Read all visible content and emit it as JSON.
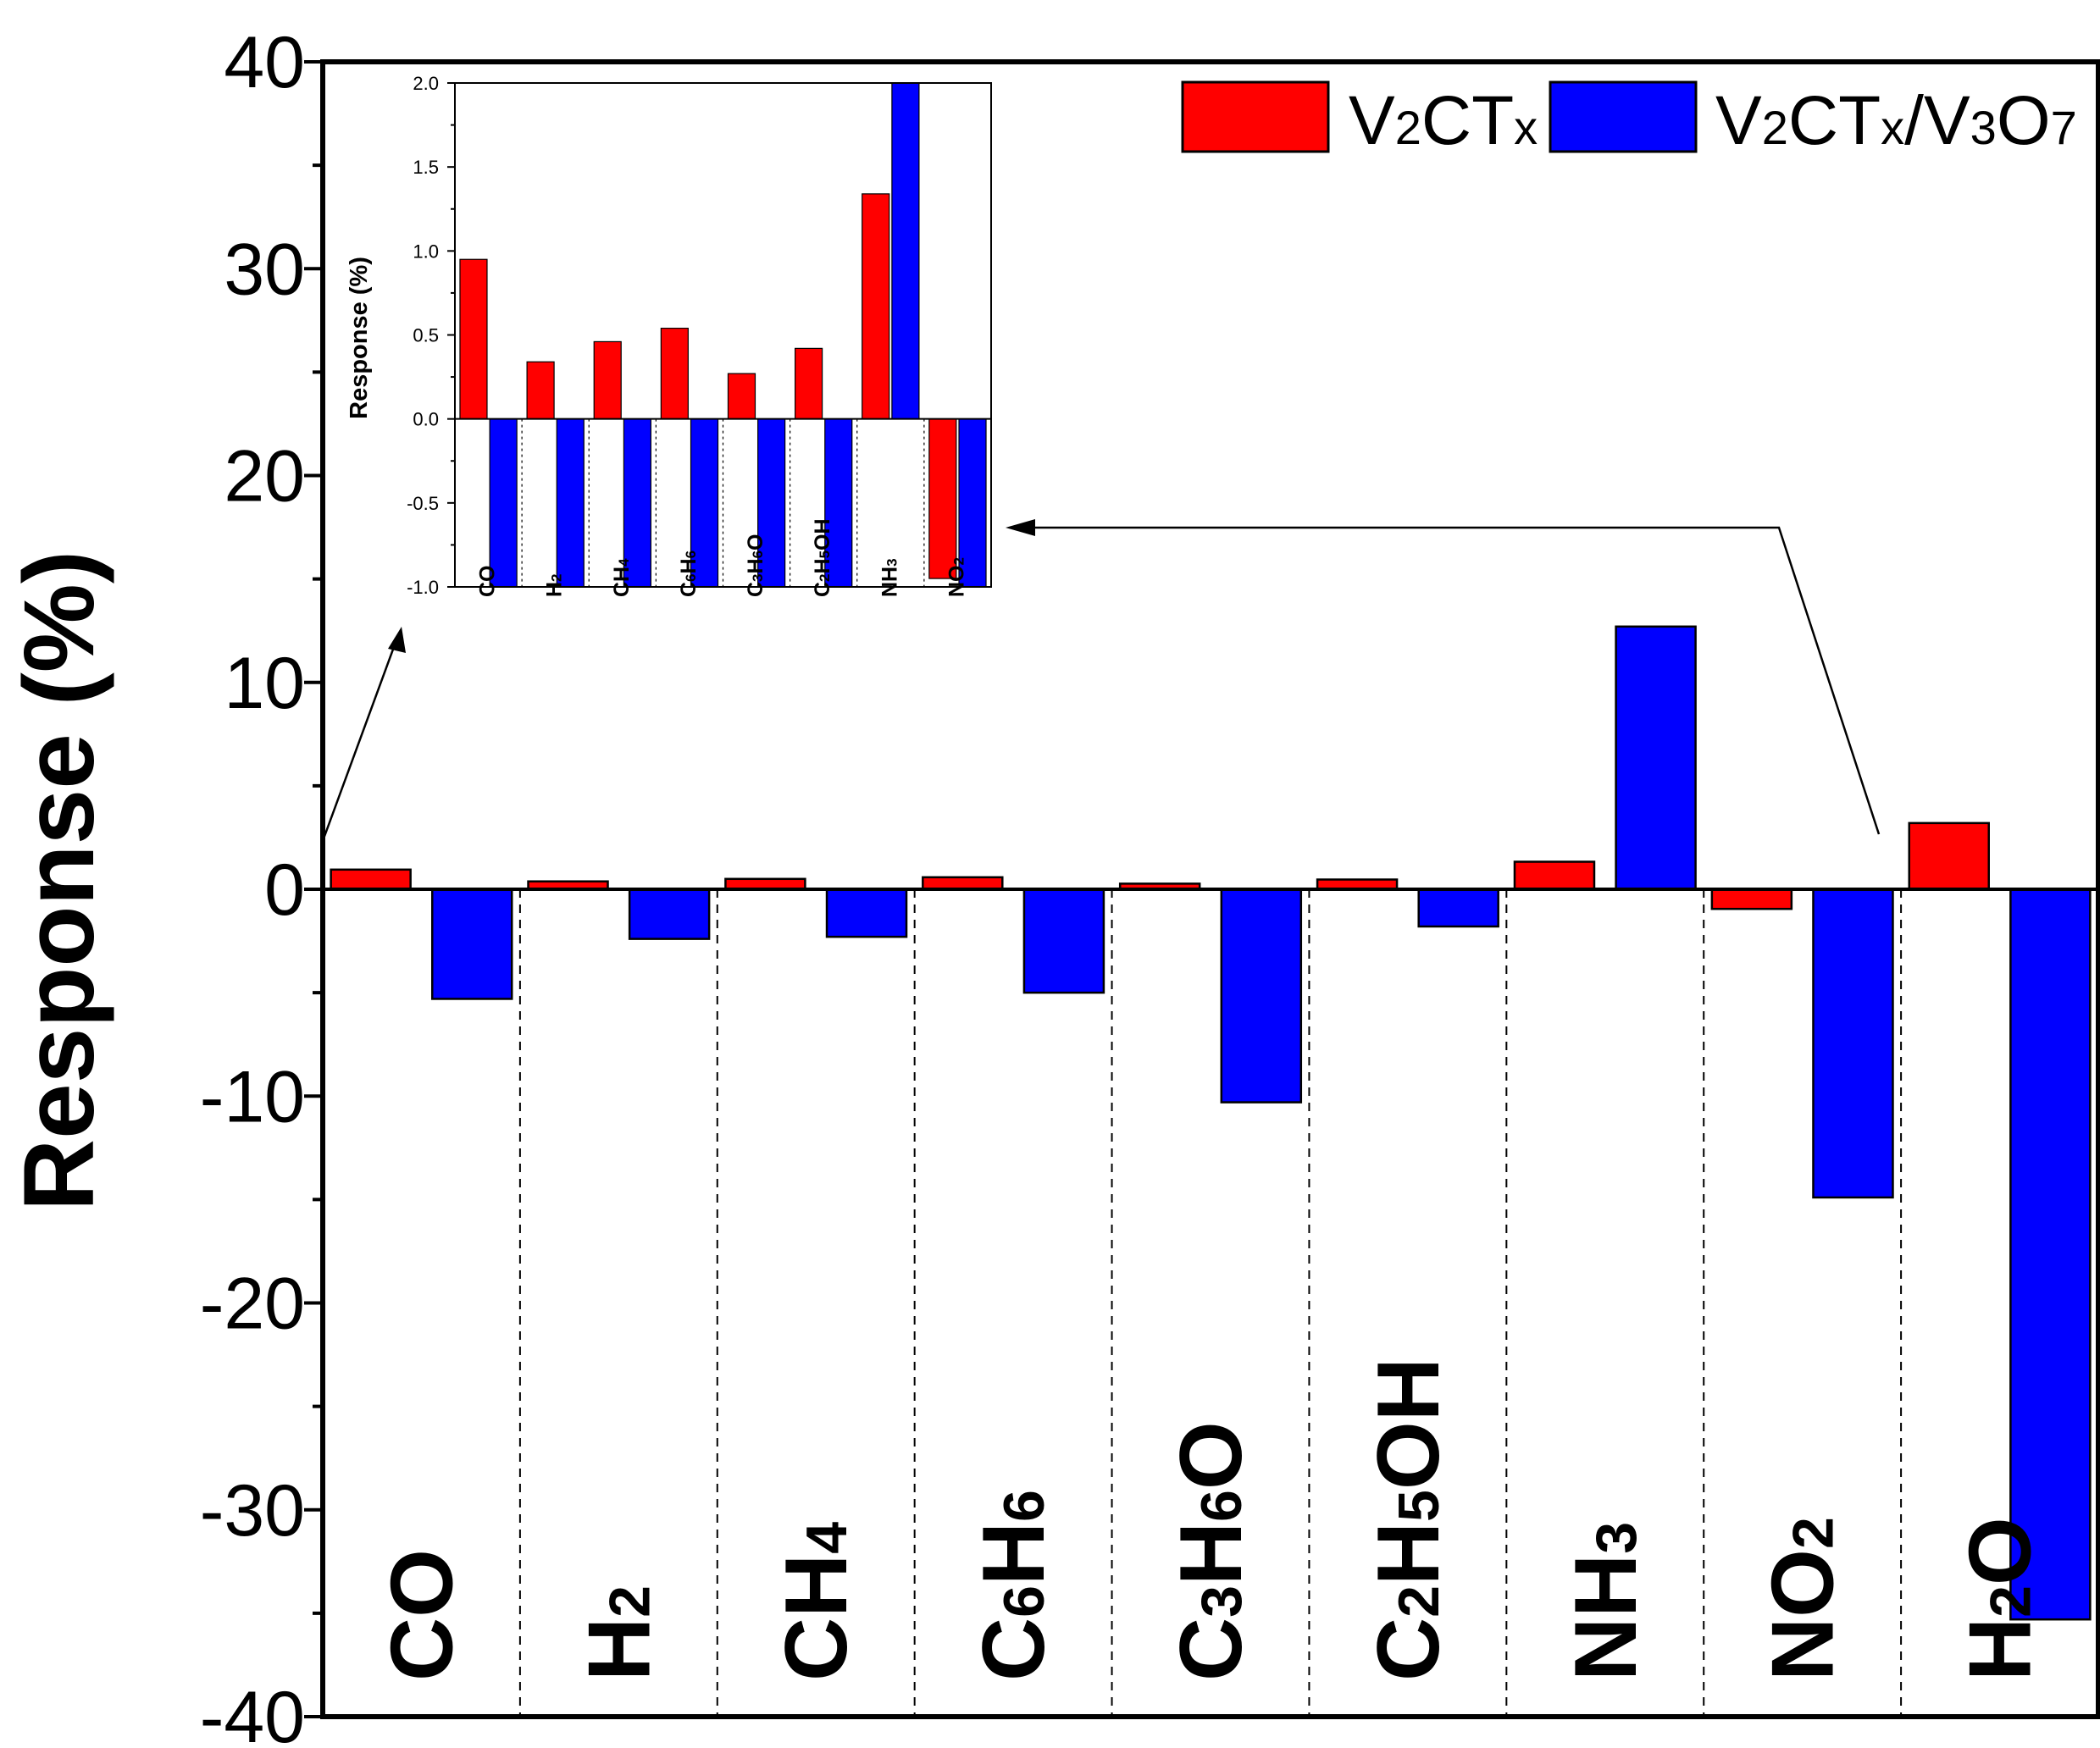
{
  "chart_data": [
    {
      "id": "main",
      "type": "bar",
      "title": "",
      "xlabel": "",
      "ylabel": "Response (%)",
      "ylim": [
        -40,
        40
      ],
      "yticks": [
        -40,
        -30,
        -20,
        -10,
        0,
        10,
        20,
        30,
        40
      ],
      "ytick_labels": [
        "-40",
        "-30",
        "-20",
        "-10",
        "0",
        "10",
        "20",
        "30",
        "40"
      ],
      "minor_tick_step": 5,
      "grid": false,
      "category_separators": "dashed",
      "categories": [
        "CO",
        "H2",
        "CH4",
        "C6H6",
        "C3H6O",
        "C2H5OH",
        "NH3",
        "NO2",
        "H2O"
      ],
      "category_labels": [
        [
          {
            "t": "CO"
          }
        ],
        [
          {
            "t": "H"
          },
          {
            "t": "2",
            "sub": true
          }
        ],
        [
          {
            "t": "CH"
          },
          {
            "t": "4",
            "sub": true
          }
        ],
        [
          {
            "t": "C"
          },
          {
            "t": "6",
            "sub": true
          },
          {
            "t": "H"
          },
          {
            "t": "6",
            "sub": true
          }
        ],
        [
          {
            "t": "C"
          },
          {
            "t": "3",
            "sub": true
          },
          {
            "t": "H"
          },
          {
            "t": "6",
            "sub": true
          },
          {
            "t": "O"
          }
        ],
        [
          {
            "t": "C"
          },
          {
            "t": "2",
            "sub": true
          },
          {
            "t": "H"
          },
          {
            "t": "5",
            "sub": true
          },
          {
            "t": "OH"
          }
        ],
        [
          {
            "t": "NH"
          },
          {
            "t": "3",
            "sub": true
          }
        ],
        [
          {
            "t": "NO"
          },
          {
            "t": "2",
            "sub": true
          }
        ],
        [
          {
            "t": "H"
          },
          {
            "t": "2",
            "sub": true
          },
          {
            "t": "O"
          }
        ]
      ],
      "series": [
        {
          "name": "V2CTx",
          "color": "#ff0000",
          "values": [
            0.95,
            0.38,
            0.5,
            0.58,
            0.27,
            0.47,
            1.33,
            -0.95,
            3.2
          ]
        },
        {
          "name": "V2CTx/V3O7",
          "color": "#0000ff",
          "values": [
            -5.3,
            -2.4,
            -2.3,
            -5.0,
            -10.3,
            -1.8,
            12.7,
            -14.9,
            -35.3
          ]
        }
      ],
      "legend_position": "top-right",
      "legend_labels": [
        [
          {
            "t": "V"
          },
          {
            "t": "2",
            "sub": true
          },
          {
            "t": "CT"
          },
          {
            "t": "x",
            "sub": true
          }
        ],
        [
          {
            "t": "V"
          },
          {
            "t": "2",
            "sub": true
          },
          {
            "t": "CT"
          },
          {
            "t": "x",
            "sub": true
          },
          {
            "t": "/V"
          },
          {
            "t": "3",
            "sub": true
          },
          {
            "t": "O"
          },
          {
            "t": "7",
            "sub": true
          }
        ]
      ]
    },
    {
      "id": "inset",
      "type": "bar",
      "title": "",
      "xlabel": "",
      "ylabel": "Response (%)",
      "ylim": [
        -1.0,
        2.0
      ],
      "yticks": [
        -1.0,
        -0.5,
        0.0,
        0.5,
        1.0,
        1.5,
        2.0
      ],
      "ytick_labels": [
        "-1.0",
        "-0.5",
        "0.0",
        "0.5",
        "1.0",
        "1.5",
        "2.0"
      ],
      "minor_tick_step": 0.25,
      "grid": false,
      "category_separators": "dotted",
      "categories": [
        "CO",
        "H2",
        "CH4",
        "C6H6",
        "C3H6O",
        "C2H5OH",
        "NH3",
        "NO2"
      ],
      "category_labels": [
        [
          {
            "t": "CO"
          }
        ],
        [
          {
            "t": "H"
          },
          {
            "t": "2",
            "sub": true
          }
        ],
        [
          {
            "t": "CH"
          },
          {
            "t": "4",
            "sub": true
          }
        ],
        [
          {
            "t": "C"
          },
          {
            "t": "6",
            "sub": true
          },
          {
            "t": "H"
          },
          {
            "t": "6",
            "sub": true
          }
        ],
        [
          {
            "t": "C"
          },
          {
            "t": "3",
            "sub": true
          },
          {
            "t": "H"
          },
          {
            "t": "6",
            "sub": true
          },
          {
            "t": "O"
          }
        ],
        [
          {
            "t": "C"
          },
          {
            "t": "2",
            "sub": true
          },
          {
            "t": "H"
          },
          {
            "t": "5",
            "sub": true
          },
          {
            "t": "OH"
          }
        ],
        [
          {
            "t": "NH"
          },
          {
            "t": "3",
            "sub": true
          }
        ],
        [
          {
            "t": "NO"
          },
          {
            "t": "2",
            "sub": true
          }
        ]
      ],
      "series": [
        {
          "name": "V2CTx",
          "color": "#ff0000",
          "values": [
            0.95,
            0.34,
            0.46,
            0.54,
            0.27,
            0.42,
            1.34,
            -0.95
          ]
        },
        {
          "name": "V2CTx/V3O7",
          "color": "#0000ff",
          "values": [
            -1.0,
            -1.0,
            -1.0,
            -1.0,
            -1.0,
            -1.0,
            2.0,
            -1.0
          ]
        }
      ],
      "note": "Inset bars are clipped at the inset axis limits"
    }
  ]
}
